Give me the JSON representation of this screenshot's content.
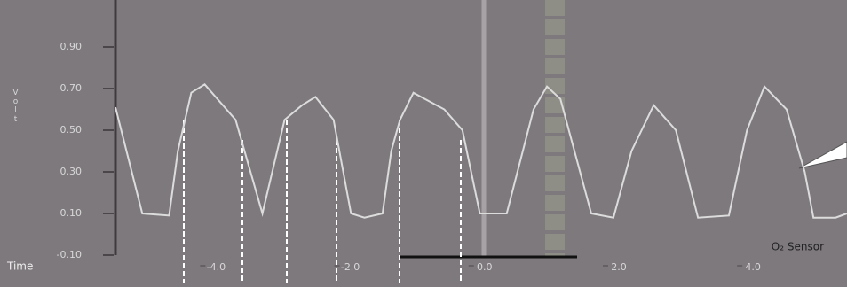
{
  "chart_data": {
    "type": "line",
    "y_label": "Volt",
    "x_label": "Time",
    "xlim": [
      -5.5,
      5.4
    ],
    "ylim": [
      -0.1,
      1.1
    ],
    "xticks": [
      {
        "value": -4,
        "label": "-4.0"
      },
      {
        "value": -2,
        "label": "-2.0"
      },
      {
        "value": 0,
        "label": "0.0"
      },
      {
        "value": 2,
        "label": "2.0"
      },
      {
        "value": 4,
        "label": "4.0"
      }
    ],
    "yticks": [
      {
        "value": -0.1,
        "label": "-0.10"
      },
      {
        "value": 0.1,
        "label": "0.10"
      },
      {
        "value": 0.3,
        "label": "0.30"
      },
      {
        "value": 0.5,
        "label": "0.50"
      },
      {
        "value": 0.7,
        "label": "0.70"
      },
      {
        "value": 0.9,
        "label": "0.90"
      }
    ],
    "x": [
      -5.5,
      -5.1,
      -4.7,
      -4.57,
      -4.37,
      -4.17,
      -3.71,
      -3.31,
      -2.98,
      -2.72,
      -2.52,
      -2.25,
      -1.99,
      -1.79,
      -1.52,
      -1.39,
      -1.26,
      -1.06,
      -0.6,
      -0.33,
      -0.07,
      0.33,
      0.73,
      0.93,
      1.13,
      1.59,
      1.92,
      2.19,
      2.52,
      2.85,
      3.18,
      3.64,
      3.91,
      4.17,
      4.5,
      4.77,
      4.9,
      5.23,
      5.4
    ],
    "series": [
      {
        "name": "O₂ Sensor",
        "color": "#dcdcdc",
        "values": [
          0.61,
          0.1,
          0.09,
          0.4,
          0.68,
          0.72,
          0.55,
          0.1,
          0.55,
          0.62,
          0.66,
          0.55,
          0.1,
          0.08,
          0.1,
          0.4,
          0.55,
          0.68,
          0.6,
          0.5,
          0.1,
          0.1,
          0.6,
          0.71,
          0.65,
          0.1,
          0.08,
          0.4,
          0.62,
          0.5,
          0.08,
          0.09,
          0.5,
          0.71,
          0.6,
          0.3,
          0.08,
          0.08,
          0.1
        ]
      }
    ]
  }
}
